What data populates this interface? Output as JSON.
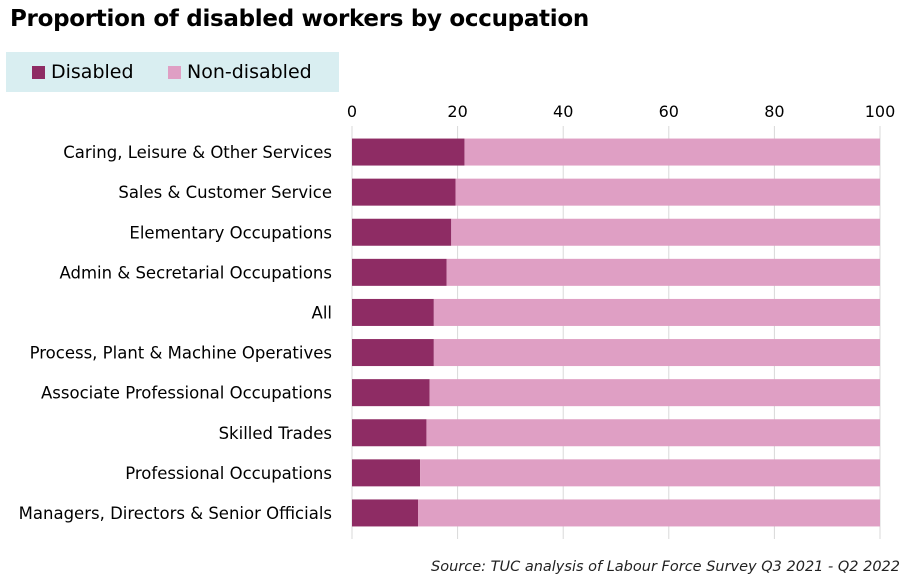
{
  "chart_data": {
    "type": "bar",
    "orientation": "horizontal",
    "stacked": true,
    "title": "Proportion of disabled workers by occupation",
    "categories": [
      "Caring, Leisure & Other Services",
      "Sales & Customer Service",
      "Elementary Occupations",
      "Admin & Secretarial Occupations",
      "All",
      "Process, Plant & Machine Operatives",
      "Associate Professional Occupations",
      "Skilled Trades",
      "Professional Occupations",
      "Managers, Directors & Senior Officials"
    ],
    "series": [
      {
        "name": "Disabled",
        "color": "#8e2c64",
        "values": [
          21.3,
          19.6,
          18.8,
          17.9,
          15.5,
          15.5,
          14.7,
          14.1,
          12.9,
          12.5
        ]
      },
      {
        "name": "Non-disabled",
        "color": "#df9fc4",
        "values": [
          78.7,
          80.4,
          81.2,
          82.1,
          84.5,
          84.5,
          85.3,
          85.9,
          87.1,
          87.5
        ]
      }
    ],
    "xlim": [
      0,
      100
    ],
    "xticks": [
      0,
      20,
      40,
      60,
      80,
      100
    ],
    "xaxis_position": "top",
    "grid": true,
    "legend_position": "top-left"
  },
  "source": "Source: TUC analysis of Labour Force Survey Q3 2021 - Q2 2022"
}
